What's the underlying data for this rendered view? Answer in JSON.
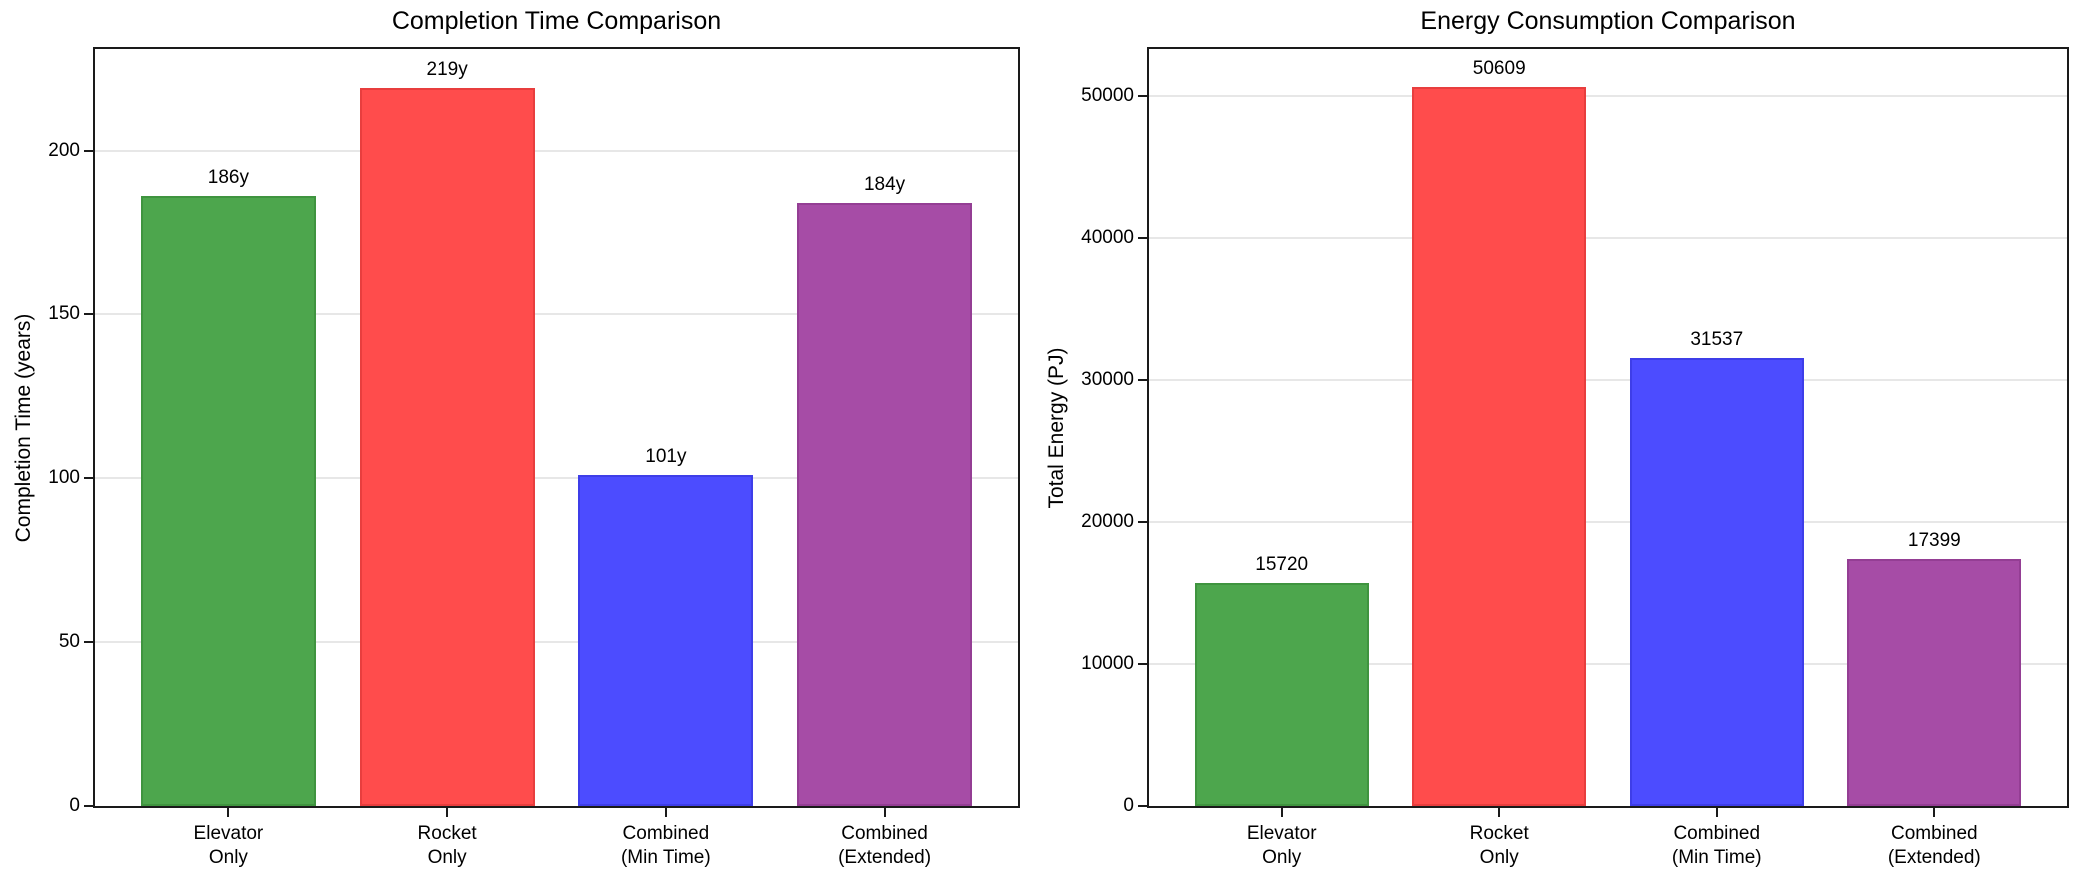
{
  "figure": {
    "background": "#ffffff",
    "spine_color": "#1a1a1a",
    "grid_color": "#e7e7e7",
    "text_color": "#000000"
  },
  "chart_data": [
    {
      "type": "bar",
      "title": "Completion Time Comparison",
      "xlabel": "",
      "ylabel": "Completion Time (years)",
      "categories": [
        "Elevator\nOnly",
        "Rocket\nOnly",
        "Combined\n(Min Time)",
        "Combined\n(Extended)"
      ],
      "values": [
        186,
        219,
        101,
        184
      ],
      "bar_labels": [
        "186y",
        "219y",
        "101y",
        "184y"
      ],
      "bar_colors": [
        "#4DA64D",
        "#FF4C4C",
        "#4C4CFF",
        "#A64CA6"
      ],
      "bar_edge_colors": [
        "#3F943F",
        "#E83E3E",
        "#3E3EE8",
        "#943E94"
      ],
      "yticks": [
        0,
        50,
        100,
        150,
        200
      ],
      "ylim": [
        0,
        231
      ],
      "grid": true,
      "legend": null
    },
    {
      "type": "bar",
      "title": "Energy Consumption Comparison",
      "xlabel": "",
      "ylabel": "Total Energy (PJ)",
      "categories": [
        "Elevator\nOnly",
        "Rocket\nOnly",
        "Combined\n(Min Time)",
        "Combined\n(Extended)"
      ],
      "values": [
        15720,
        50609,
        31537,
        17399
      ],
      "bar_labels": [
        "15720",
        "50609",
        "31537",
        "17399"
      ],
      "bar_colors": [
        "#4DA64D",
        "#FF4C4C",
        "#4C4CFF",
        "#A64CA6"
      ],
      "bar_edge_colors": [
        "#3F943F",
        "#E83E3E",
        "#3E3EE8",
        "#943E94"
      ],
      "yticks": [
        0,
        10000,
        20000,
        30000,
        40000,
        50000
      ],
      "ylim": [
        0,
        53290
      ],
      "grid": true,
      "legend": null
    }
  ]
}
